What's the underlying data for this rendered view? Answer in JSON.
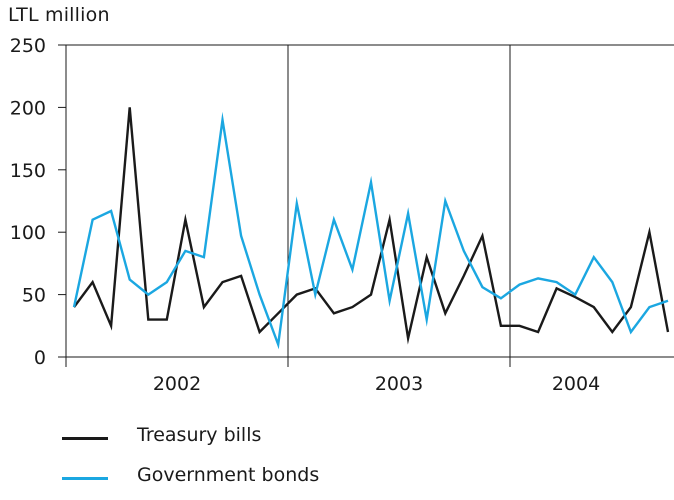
{
  "chart_data": {
    "type": "line",
    "ylabel": "LTL million",
    "ylim": [
      0,
      250
    ],
    "yticks": [
      0,
      50,
      100,
      150,
      200,
      250
    ],
    "year_labels": [
      "2002",
      "2003",
      "2004"
    ],
    "grid": "vertical lines between years, top and bottom frame",
    "legend_placement": "bottom-left",
    "series": [
      {
        "name": "Treasury bills",
        "color": "#1a1a1a",
        "values": [
          40,
          60,
          25,
          200,
          30,
          30,
          110,
          40,
          60,
          65,
          20,
          35,
          50,
          55,
          35,
          40,
          50,
          110,
          15,
          80,
          35,
          65,
          97,
          25,
          25,
          20,
          55,
          48,
          40,
          20,
          40,
          100,
          20
        ]
      },
      {
        "name": "Government bonds",
        "color": "#1ba7e1",
        "values": [
          40,
          110,
          117,
          62,
          50,
          60,
          85,
          80,
          190,
          97,
          50,
          10,
          123,
          50,
          110,
          70,
          140,
          45,
          115,
          30,
          125,
          85,
          56,
          47,
          58,
          63,
          60,
          50,
          80,
          60,
          20,
          40,
          45
        ]
      }
    ]
  }
}
